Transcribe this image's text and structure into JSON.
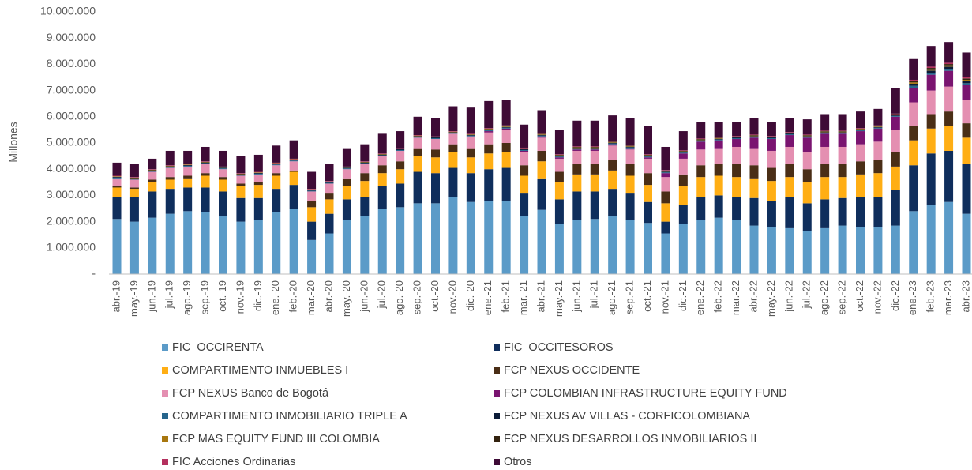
{
  "chart_data": {
    "type": "bar",
    "stacked": true,
    "y_label": "Millones",
    "categories": [
      "abr.-19",
      "may.-19",
      "jun.-19",
      "jul.-19",
      "ago.-19",
      "sep.-19",
      "oct.-19",
      "nov.-19",
      "dic.-19",
      "ene.-20",
      "feb.-20",
      "mar.-20",
      "abr.-20",
      "may.-20",
      "jun.-20",
      "jul.-20",
      "ago.-20",
      "sep.-20",
      "oct.-20",
      "nov.-20",
      "dic.-20",
      "ene.-21",
      "feb.-21",
      "mar.-21",
      "abr.-21",
      "may.-21",
      "jun.-21",
      "jul.-21",
      "ago.-21",
      "sep.-21",
      "oct.-21",
      "nov.-21",
      "dic.-21",
      "ene.-22",
      "feb.-22",
      "mar.-22",
      "abr.-22",
      "may.-22",
      "jun.-22",
      "jul.-22",
      "ago.-22",
      "sep.-22",
      "oct.-22",
      "nov.-22",
      "dic.-22",
      "ene.-23",
      "feb.-23",
      "mar.-23",
      "abr.-23"
    ],
    "ylim": [
      0,
      10000000
    ],
    "yticks": [
      {
        "value": 0,
        "label": "-"
      },
      {
        "value": 1000000,
        "label": "1.000.000"
      },
      {
        "value": 2000000,
        "label": "2.000.000"
      },
      {
        "value": 3000000,
        "label": "3.000.000"
      },
      {
        "value": 4000000,
        "label": "4.000.000"
      },
      {
        "value": 5000000,
        "label": "5.000.000"
      },
      {
        "value": 6000000,
        "label": "6.000.000"
      },
      {
        "value": 7000000,
        "label": "7.000.000"
      },
      {
        "value": 8000000,
        "label": "8.000.000"
      },
      {
        "value": 9000000,
        "label": "9.000.000"
      },
      {
        "value": 10000000,
        "label": "10.000.000"
      }
    ],
    "grid": false,
    "series": [
      {
        "name": "FIC  OCCIRENTA",
        "color": "#5b9bc8",
        "values": [
          2100000,
          2000000,
          2150000,
          2300000,
          2400000,
          2350000,
          2200000,
          2000000,
          2050000,
          2350000,
          2500000,
          1300000,
          1550000,
          2050000,
          2200000,
          2500000,
          2550000,
          2700000,
          2700000,
          2950000,
          2750000,
          2800000,
          2800000,
          2200000,
          2450000,
          1900000,
          2050000,
          2100000,
          2200000,
          2050000,
          1950000,
          1550000,
          1900000,
          2050000,
          2150000,
          2050000,
          1850000,
          1800000,
          1750000,
          1650000,
          1750000,
          1850000,
          1800000,
          1800000,
          1850000,
          2400000,
          2650000,
          2750000,
          2300000
        ]
      },
      {
        "name": "FIC  OCCITESOROS",
        "color": "#0f2e5c",
        "values": [
          850000,
          950000,
          1000000,
          950000,
          900000,
          950000,
          950000,
          900000,
          850000,
          900000,
          900000,
          700000,
          750000,
          800000,
          750000,
          850000,
          900000,
          1200000,
          1150000,
          1100000,
          1100000,
          1200000,
          1250000,
          900000,
          1200000,
          950000,
          1100000,
          1050000,
          1050000,
          1050000,
          800000,
          450000,
          750000,
          900000,
          850000,
          900000,
          1050000,
          1000000,
          1200000,
          1050000,
          1100000,
          1050000,
          1150000,
          1150000,
          1350000,
          1750000,
          1950000,
          1950000,
          1900000
        ]
      },
      {
        "name": "COMPARTIMENTO INMUEBLES I",
        "color": "#ffae14",
        "values": [
          350000,
          300000,
          350000,
          350000,
          350000,
          450000,
          450000,
          450000,
          500000,
          500000,
          500000,
          550000,
          550000,
          500000,
          600000,
          500000,
          550000,
          600000,
          600000,
          600000,
          600000,
          600000,
          600000,
          650000,
          650000,
          650000,
          650000,
          650000,
          700000,
          650000,
          650000,
          700000,
          700000,
          750000,
          750000,
          750000,
          750000,
          750000,
          750000,
          800000,
          850000,
          800000,
          850000,
          900000,
          900000,
          950000,
          950000,
          950000,
          1000000
        ]
      },
      {
        "name": "FCP NEXUS OCCIDENTE",
        "color": "#4a2e16",
        "values": [
          50000,
          50000,
          100000,
          100000,
          100000,
          100000,
          100000,
          100000,
          100000,
          100000,
          50000,
          250000,
          250000,
          300000,
          300000,
          300000,
          300000,
          300000,
          300000,
          300000,
          350000,
          350000,
          350000,
          400000,
          400000,
          400000,
          400000,
          400000,
          400000,
          450000,
          450000,
          450000,
          450000,
          450000,
          450000,
          500000,
          500000,
          500000,
          500000,
          500000,
          500000,
          500000,
          500000,
          500000,
          550000,
          550000,
          550000,
          550000,
          550000
        ]
      },
      {
        "name": "FCP NEXUS Banco de Bogotá",
        "color": "#e48fb1",
        "values": [
          300000,
          300000,
          300000,
          350000,
          350000,
          350000,
          300000,
          300000,
          300000,
          300000,
          350000,
          350000,
          350000,
          350000,
          350000,
          350000,
          400000,
          400000,
          400000,
          400000,
          450000,
          450000,
          500000,
          500000,
          500000,
          500000,
          500000,
          500000,
          550000,
          550000,
          550000,
          550000,
          600000,
          600000,
          600000,
          650000,
          650000,
          650000,
          650000,
          650000,
          650000,
          650000,
          650000,
          700000,
          850000,
          900000,
          900000,
          950000,
          900000
        ]
      },
      {
        "name": "FCP COLOMBIAN INFRASTRUCTURE EQUITY FUND",
        "color": "#7a1470",
        "values": [
          0,
          0,
          0,
          0,
          0,
          0,
          0,
          0,
          0,
          0,
          0,
          0,
          0,
          0,
          0,
          0,
          0,
          0,
          0,
          0,
          0,
          50000,
          50000,
          50000,
          50000,
          50000,
          50000,
          50000,
          50000,
          50000,
          50000,
          150000,
          200000,
          300000,
          300000,
          300000,
          400000,
          450000,
          450000,
          550000,
          500000,
          500000,
          500000,
          500000,
          500000,
          550000,
          600000,
          600000,
          550000
        ]
      },
      {
        "name": "COMPARTIMENTO INMOBILIARIO TRIPLE A",
        "color": "#26658c",
        "values": [
          30000,
          30000,
          30000,
          30000,
          30000,
          30000,
          30000,
          30000,
          30000,
          30000,
          30000,
          30000,
          30000,
          30000,
          30000,
          30000,
          30000,
          30000,
          30000,
          30000,
          30000,
          30000,
          30000,
          30000,
          30000,
          30000,
          30000,
          30000,
          30000,
          30000,
          30000,
          30000,
          30000,
          30000,
          30000,
          30000,
          30000,
          30000,
          30000,
          30000,
          30000,
          30000,
          30000,
          30000,
          30000,
          80000,
          80000,
          80000,
          80000
        ]
      },
      {
        "name": "FCP NEXUS AV VILLAS - CORFICOLOMBIANA",
        "color": "#0b1c38",
        "values": [
          30000,
          30000,
          30000,
          30000,
          30000,
          30000,
          30000,
          30000,
          30000,
          30000,
          30000,
          30000,
          30000,
          30000,
          30000,
          30000,
          30000,
          30000,
          30000,
          30000,
          30000,
          30000,
          30000,
          30000,
          30000,
          30000,
          30000,
          30000,
          30000,
          30000,
          30000,
          30000,
          30000,
          30000,
          30000,
          30000,
          30000,
          30000,
          30000,
          30000,
          30000,
          30000,
          30000,
          30000,
          30000,
          80000,
          80000,
          80000,
          80000
        ]
      },
      {
        "name": "FCP MAS EQUITY FUND III COLOMBIA",
        "color": "#a8770f",
        "values": [
          20000,
          20000,
          20000,
          20000,
          20000,
          20000,
          20000,
          20000,
          20000,
          20000,
          20000,
          20000,
          20000,
          20000,
          20000,
          20000,
          20000,
          20000,
          20000,
          20000,
          20000,
          20000,
          20000,
          20000,
          20000,
          20000,
          20000,
          20000,
          20000,
          20000,
          20000,
          20000,
          20000,
          20000,
          20000,
          20000,
          20000,
          20000,
          20000,
          20000,
          20000,
          20000,
          20000,
          20000,
          20000,
          50000,
          50000,
          50000,
          50000
        ]
      },
      {
        "name": "FCP NEXUS DESARROLLOS INMOBILIARIOS II",
        "color": "#33220f",
        "values": [
          0,
          0,
          0,
          0,
          0,
          0,
          0,
          0,
          0,
          0,
          0,
          0,
          0,
          0,
          0,
          0,
          0,
          0,
          0,
          0,
          0,
          20000,
          20000,
          20000,
          20000,
          20000,
          20000,
          20000,
          20000,
          20000,
          20000,
          20000,
          20000,
          20000,
          20000,
          20000,
          20000,
          20000,
          20000,
          20000,
          20000,
          20000,
          20000,
          20000,
          20000,
          50000,
          50000,
          50000,
          50000
        ]
      },
      {
        "name": "FIC Acciones Ordinarias",
        "color": "#b4305e",
        "values": [
          20000,
          20000,
          20000,
          20000,
          20000,
          20000,
          20000,
          20000,
          20000,
          20000,
          20000,
          20000,
          20000,
          20000,
          20000,
          20000,
          20000,
          20000,
          20000,
          20000,
          20000,
          20000,
          20000,
          20000,
          20000,
          20000,
          20000,
          20000,
          20000,
          20000,
          20000,
          20000,
          20000,
          20000,
          20000,
          20000,
          20000,
          20000,
          20000,
          20000,
          20000,
          20000,
          20000,
          20000,
          20000,
          50000,
          50000,
          50000,
          50000
        ]
      },
      {
        "name": "Otros",
        "color": "#3e0b36",
        "values": [
          500000,
          500000,
          400000,
          550000,
          500000,
          550000,
          600000,
          650000,
          650000,
          650000,
          700000,
          650000,
          650000,
          700000,
          650000,
          750000,
          650000,
          700000,
          700000,
          950000,
          1000000,
          1030000,
          980000,
          880000,
          880000,
          930000,
          980000,
          980000,
          980000,
          1030000,
          1080000,
          880000,
          730000,
          630000,
          580000,
          530000,
          630000,
          530000,
          530000,
          580000,
          630000,
          630000,
          630000,
          630000,
          980000,
          790000,
          790000,
          790000,
          940000
        ]
      }
    ]
  }
}
